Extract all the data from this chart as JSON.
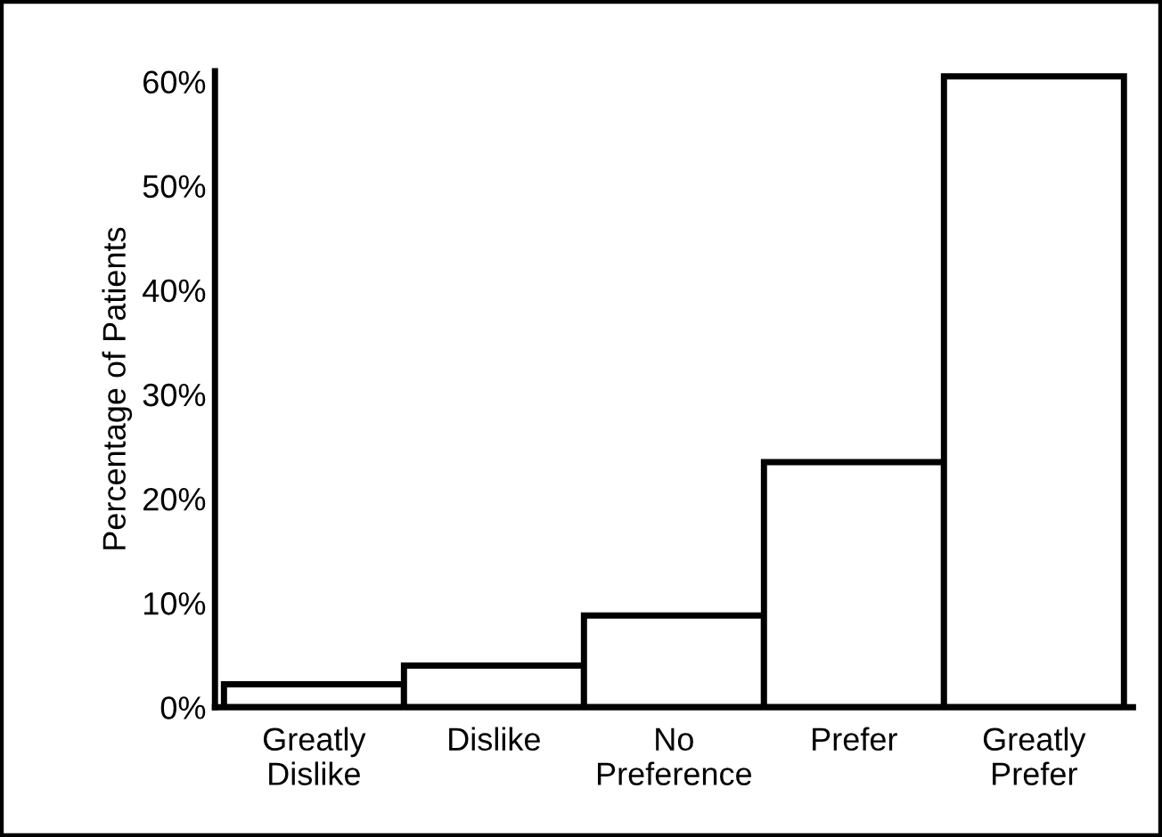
{
  "chart_data": {
    "type": "bar",
    "ylabel": "Percentage of Patients",
    "categories": [
      "Greatly\nDislike",
      "Dislike",
      "No\nPreference",
      "Prefer",
      "Greatly\nPrefer"
    ],
    "values": [
      2.2,
      4,
      8.8,
      23.5,
      60.5
    ],
    "color": "#ffffff",
    "ylim": [
      0,
      61
    ],
    "yticks": [
      {
        "value": 0,
        "label": "0%"
      },
      {
        "value": 10,
        "label": "10%"
      },
      {
        "value": 20,
        "label": "20%"
      },
      {
        "value": 30,
        "label": "30%"
      },
      {
        "value": 40,
        "label": "40%"
      },
      {
        "value": 50,
        "label": "50%"
      },
      {
        "value": 60,
        "label": "60%"
      }
    ],
    "grid": false
  }
}
